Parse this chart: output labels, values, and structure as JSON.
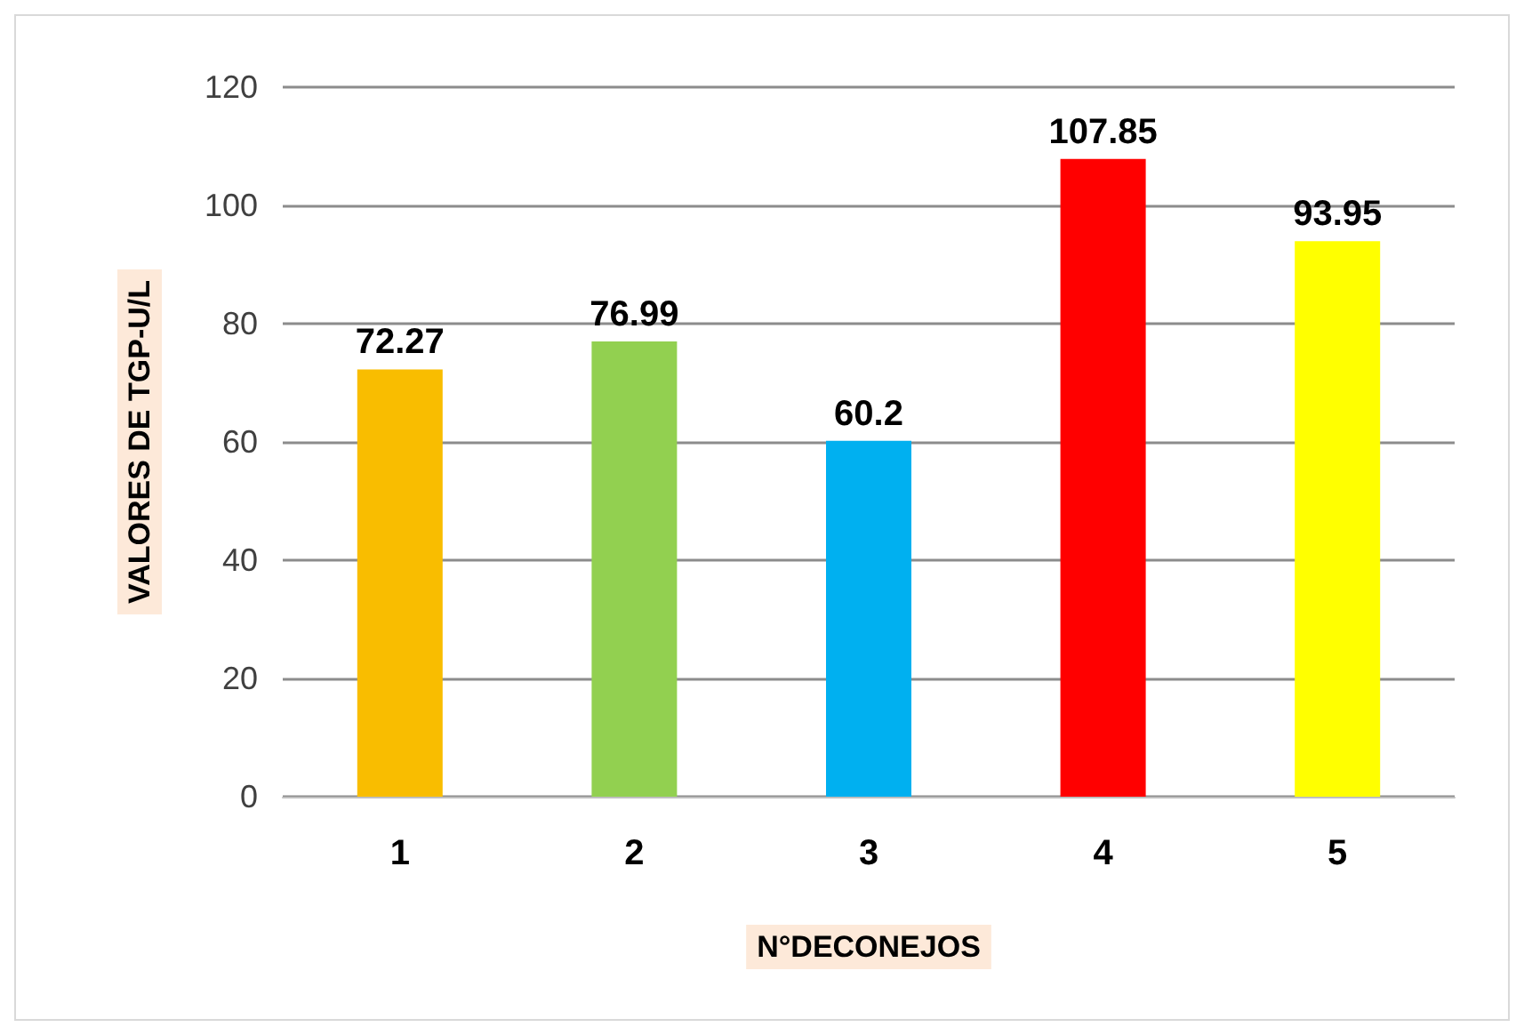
{
  "chart_data": {
    "type": "bar",
    "xlabel": "N°DECONEJOS",
    "ylabel": "VALORES DE TGP-U/L",
    "categories": [
      "1",
      "2",
      "3",
      "4",
      "5"
    ],
    "values": [
      72.27,
      76.99,
      60.2,
      107.85,
      93.95
    ],
    "colors": [
      "#f9bd00",
      "#92d050",
      "#00b0f0",
      "#ff0000",
      "#ffff00"
    ],
    "ylim": [
      0,
      120
    ],
    "yticks": [
      0,
      20,
      40,
      60,
      80,
      100,
      120
    ],
    "grid": "y",
    "data_labels": true
  }
}
